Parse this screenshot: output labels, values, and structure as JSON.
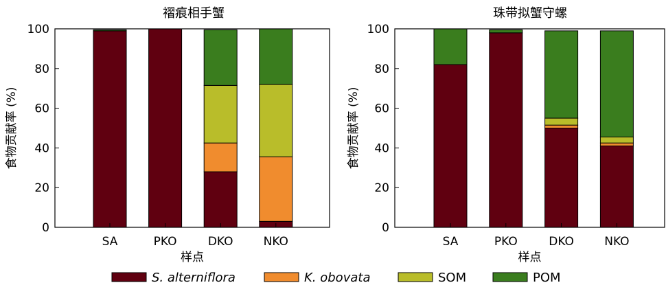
{
  "colors": {
    "S_alterniflora": "#600010",
    "K_obovata": "#f08c2e",
    "SOM": "#b9bd2a",
    "POM": "#3a7d1e"
  },
  "legend": [
    {
      "label": "S. alterniflora",
      "italic": true,
      "color_key": "S_alterniflora"
    },
    {
      "label": "K. obovata",
      "italic": true,
      "color_key": "K_obovata"
    },
    {
      "label": "SOM",
      "italic": false,
      "color_key": "SOM"
    },
    {
      "label": "POM",
      "italic": false,
      "color_key": "POM"
    }
  ],
  "chart_data": [
    {
      "type": "bar",
      "stacked": true,
      "title": "褶痕相手蟹",
      "xlabel": "样点",
      "ylabel": "食物贡献率 (%)",
      "ylim": [
        0,
        100
      ],
      "yticks": [
        "0",
        "20",
        "40",
        "60",
        "80",
        "100"
      ],
      "categories": [
        "SA",
        "PKO",
        "DKO",
        "NKO"
      ],
      "series": [
        {
          "name": "S. alterniflora",
          "color_key": "S_alterniflora",
          "values": [
            99,
            100,
            28,
            3
          ]
        },
        {
          "name": "K. obovata",
          "color_key": "K_obovata",
          "values": [
            0,
            0,
            14.5,
            32.5
          ]
        },
        {
          "name": "SOM",
          "color_key": "SOM",
          "values": [
            0,
            0,
            29,
            36.5
          ]
        },
        {
          "name": "POM",
          "color_key": "POM",
          "values": [
            0.5,
            0,
            28,
            28
          ]
        }
      ]
    },
    {
      "type": "bar",
      "stacked": true,
      "title": "珠带拟蟹守螺",
      "xlabel": "样点",
      "ylabel": "食物贡献率  (%)",
      "ylim": [
        0,
        100
      ],
      "yticks": [
        "0",
        "20",
        "40",
        "60",
        "80",
        "100"
      ],
      "categories": [
        "SA",
        "PKO",
        "DKO",
        "NKO"
      ],
      "series": [
        {
          "name": "S. alterniflora",
          "color_key": "S_alterniflora",
          "values": [
            82,
            98,
            50,
            41
          ]
        },
        {
          "name": "K. obovata",
          "color_key": "K_obovata",
          "values": [
            0,
            0,
            1.5,
            1.5
          ]
        },
        {
          "name": "SOM",
          "color_key": "SOM",
          "values": [
            0,
            0,
            3.5,
            3
          ]
        },
        {
          "name": "POM",
          "color_key": "POM",
          "values": [
            18,
            1.5,
            44,
            53.5
          ]
        }
      ]
    }
  ]
}
